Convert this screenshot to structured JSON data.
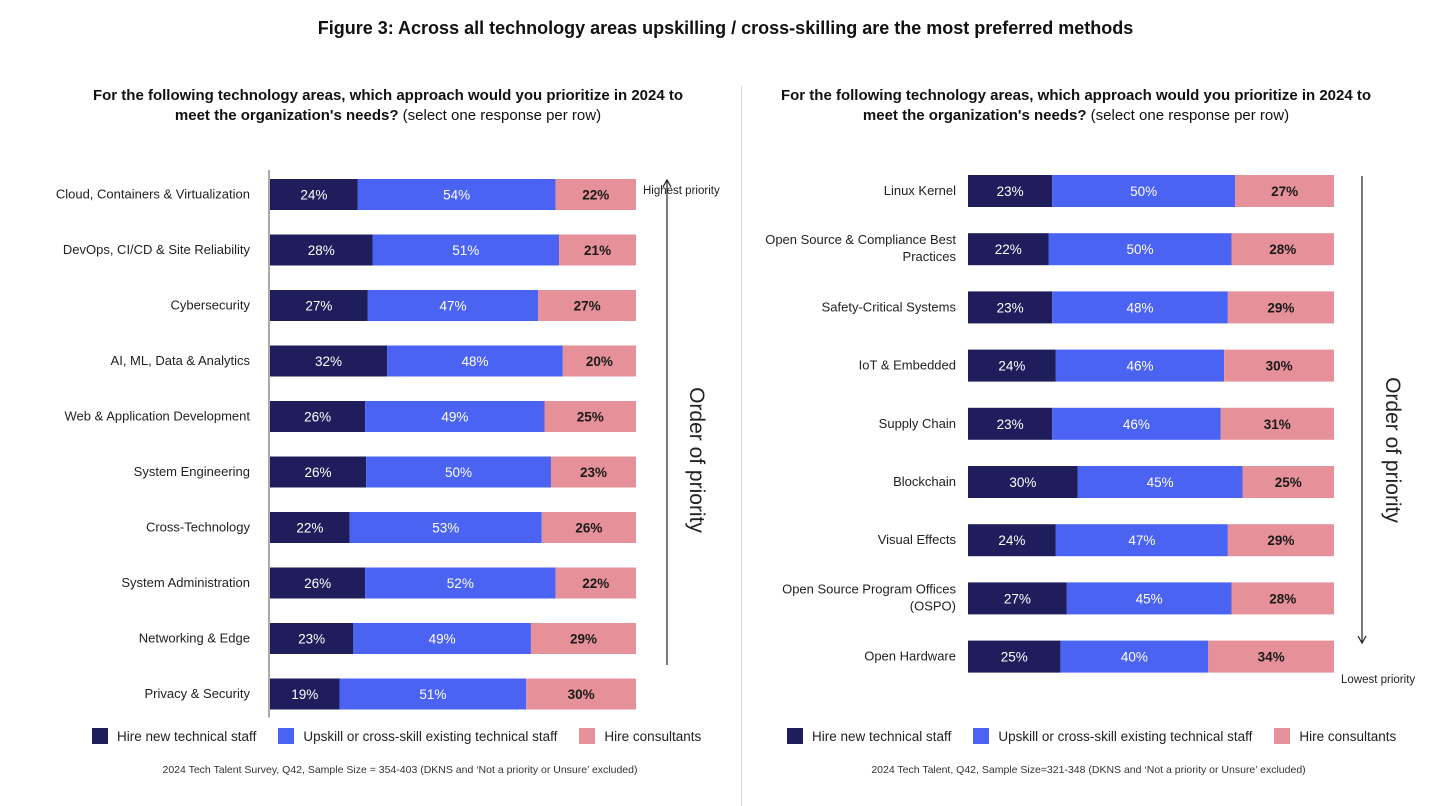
{
  "figure_title": "Figure 3: Across all technology areas upskilling / cross-skilling are the most preferred methods",
  "colors": {
    "hire": "#1f1d5b",
    "upskill": "#4a63f2",
    "consult": "#e6919a",
    "hire_text": "#ffffff",
    "upskill_text": "#ffffff",
    "consult_text": "#1a1a1a"
  },
  "legend": {
    "hire": "Hire new technical staff",
    "upskill": "Upskill or cross-skill existing technical staff",
    "consult": "Hire consultants"
  },
  "left": {
    "question_bold": "For the following technology areas, which approach would you prioritize in 2024 to meet the organization's needs?",
    "question_normal": "(select one response per row)",
    "source": "2024 Tech Talent Survey, Q42, Sample Size = 354-403 (DKNS and ‘Not a priority or Unsure’ excluded)",
    "top_note": "Highest priority",
    "order_label": "Order of priority"
  },
  "right": {
    "question_bold": "For the following technology areas, which approach would you prioritize in 2024 to meet the organization's needs?",
    "question_normal": "(select one response per row)",
    "source": "2024 Tech Talent, Q42, Sample Size=321-348 (DKNS and ‘Not a priority or Unsure’ excluded)",
    "bottom_note": "Lowest priority",
    "order_label": "Order of priority"
  },
  "chart_data": [
    {
      "type": "bar",
      "orientation": "horizontal",
      "stacked": true,
      "title": "For the following technology areas, which approach would you prioritize in 2024 to meet the organization's needs? (select one response per row)",
      "categories": [
        "Cloud, Containers & Virtualization",
        "DevOps, CI/CD & Site Reliability",
        "Cybersecurity",
        "AI, ML, Data & Analytics",
        "Web & Application Development",
        "System Engineering",
        "Cross-Technology",
        "System Administration",
        "Networking & Edge",
        "Privacy & Security"
      ],
      "series": [
        {
          "name": "Hire new technical staff",
          "values": [
            24,
            28,
            27,
            32,
            26,
            26,
            22,
            26,
            23,
            19
          ]
        },
        {
          "name": "Upskill or cross-skill existing technical staff",
          "values": [
            54,
            51,
            47,
            48,
            49,
            50,
            53,
            52,
            49,
            51
          ]
        },
        {
          "name": "Hire consultants",
          "values": [
            22,
            21,
            27,
            20,
            25,
            23,
            26,
            22,
            29,
            30
          ]
        }
      ],
      "unit": "%",
      "legend_position": "bottom"
    },
    {
      "type": "bar",
      "orientation": "horizontal",
      "stacked": true,
      "title": "For the following technology areas, which approach would you prioritize in 2024 to meet the organization's needs? (select one response per row)",
      "categories": [
        "Linux Kernel",
        "Open Source & Compliance Best Practices",
        "Safety-Critical Systems",
        "IoT & Embedded",
        "Supply Chain",
        "Blockchain",
        "Visual Effects",
        "Open Source Program Offices (OSPO)",
        "Open Hardware"
      ],
      "series": [
        {
          "name": "Hire new technical staff",
          "values": [
            23,
            22,
            23,
            24,
            23,
            30,
            24,
            27,
            25
          ]
        },
        {
          "name": "Upskill or cross-skill existing technical staff",
          "values": [
            50,
            50,
            48,
            46,
            46,
            45,
            47,
            45,
            40
          ]
        },
        {
          "name": "Hire consultants",
          "values": [
            27,
            28,
            29,
            30,
            31,
            25,
            29,
            28,
            34
          ]
        }
      ],
      "unit": "%",
      "legend_position": "bottom"
    }
  ]
}
